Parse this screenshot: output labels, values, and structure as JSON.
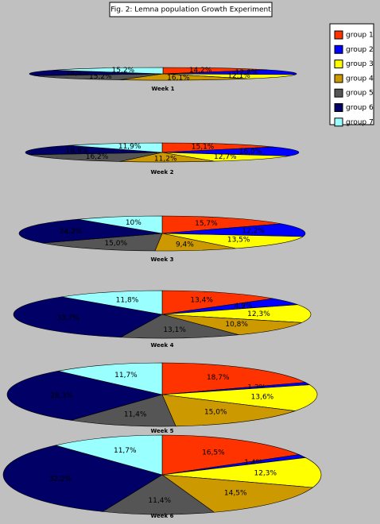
{
  "title": "Fig. 2: Lemna population Growth Experiment",
  "chart_data": [
    {
      "type": "pie",
      "title": "Week 1",
      "categories": [
        "group 1",
        "group 2",
        "group 3",
        "group 4",
        "group 5",
        "group 6",
        "group 7"
      ],
      "colors": [
        "#ff3300",
        "#0000ff",
        "#ffff00",
        "#cc9900",
        "#555555",
        "#000066",
        "#99ffff"
      ],
      "values": [
        14.2,
        12.8,
        12.1,
        16.1,
        15.2,
        14.4,
        15.2
      ],
      "value_labels": [
        "14,2%",
        "12,8%",
        "12,1%",
        "16,1%",
        "15,2%",
        "14,4%",
        "15,2%"
      ]
    },
    {
      "type": "pie",
      "title": "Week 2",
      "categories": [
        "group 1",
        "group 2",
        "group 3",
        "group 4",
        "group 5",
        "group 6",
        "group 7"
      ],
      "colors": [
        "#ff3300",
        "#0000ff",
        "#ffff00",
        "#cc9900",
        "#555555",
        "#000066",
        "#99ffff"
      ],
      "values": [
        15.1,
        16.0,
        12.7,
        11.2,
        16.2,
        16.9,
        11.9
      ],
      "value_labels": [
        "15,1%",
        "16,0%",
        "12,7%",
        "11,2%",
        "16,2%",
        "16,9%",
        "11,9%"
      ]
    },
    {
      "type": "pie",
      "title": "Week 3",
      "categories": [
        "group 1",
        "group 2",
        "group 3",
        "group 4",
        "group 5",
        "group 6",
        "group 7"
      ],
      "colors": [
        "#ff3300",
        "#0000ff",
        "#ffff00",
        "#cc9900",
        "#555555",
        "#000066",
        "#99ffff"
      ],
      "values": [
        15.7,
        12.2,
        13.5,
        9.4,
        15.0,
        24.2,
        10
      ],
      "value_labels": [
        "15,7%",
        "12,2%",
        "13,5%",
        "9,4%",
        "15,0%",
        "24,2%",
        "10%"
      ]
    },
    {
      "type": "pie",
      "title": "Week 4",
      "categories": [
        "group 1",
        "group 2",
        "group 3",
        "group 4",
        "group 5",
        "group 6",
        "group 7"
      ],
      "colors": [
        "#ff3300",
        "#0000ff",
        "#ffff00",
        "#cc9900",
        "#555555",
        "#000066",
        "#99ffff"
      ],
      "values": [
        13.4,
        4.9,
        12.3,
        10.8,
        13.1,
        33.7,
        11.8
      ],
      "value_labels": [
        "13,4%",
        "4,9%",
        "12,3%",
        "10,8%",
        "13,1%",
        "33,7%",
        "11,8%"
      ]
    },
    {
      "type": "pie",
      "title": "Week 5",
      "categories": [
        "group 1",
        "group 2",
        "group 3",
        "group 4",
        "group 5",
        "group 6",
        "group 7"
      ],
      "colors": [
        "#ff3300",
        "#0000ff",
        "#ffff00",
        "#cc9900",
        "#555555",
        "#000066",
        "#99ffff"
      ],
      "values": [
        18.7,
        1.3,
        13.6,
        15.0,
        11.4,
        28.3,
        11.7
      ],
      "value_labels": [
        "18,7%",
        "1,3%",
        "13,6%",
        "15,0%",
        "11,4%",
        "28,3%",
        "11,7%"
      ]
    },
    {
      "type": "pie",
      "title": "Week 6",
      "categories": [
        "group 1",
        "group 2",
        "group 3",
        "group 4",
        "group 5",
        "group 6",
        "group 7"
      ],
      "colors": [
        "#ff3300",
        "#0000ff",
        "#ffff00",
        "#cc9900",
        "#555555",
        "#000066",
        "#99ffff"
      ],
      "values": [
        16.5,
        1.4,
        12.3,
        14.5,
        11.4,
        32.2,
        11.7
      ],
      "value_labels": [
        "16,5%",
        "1,4%",
        "12,3%",
        "14,5%",
        "11,4%",
        "32,2%",
        "11,7%"
      ]
    }
  ]
}
